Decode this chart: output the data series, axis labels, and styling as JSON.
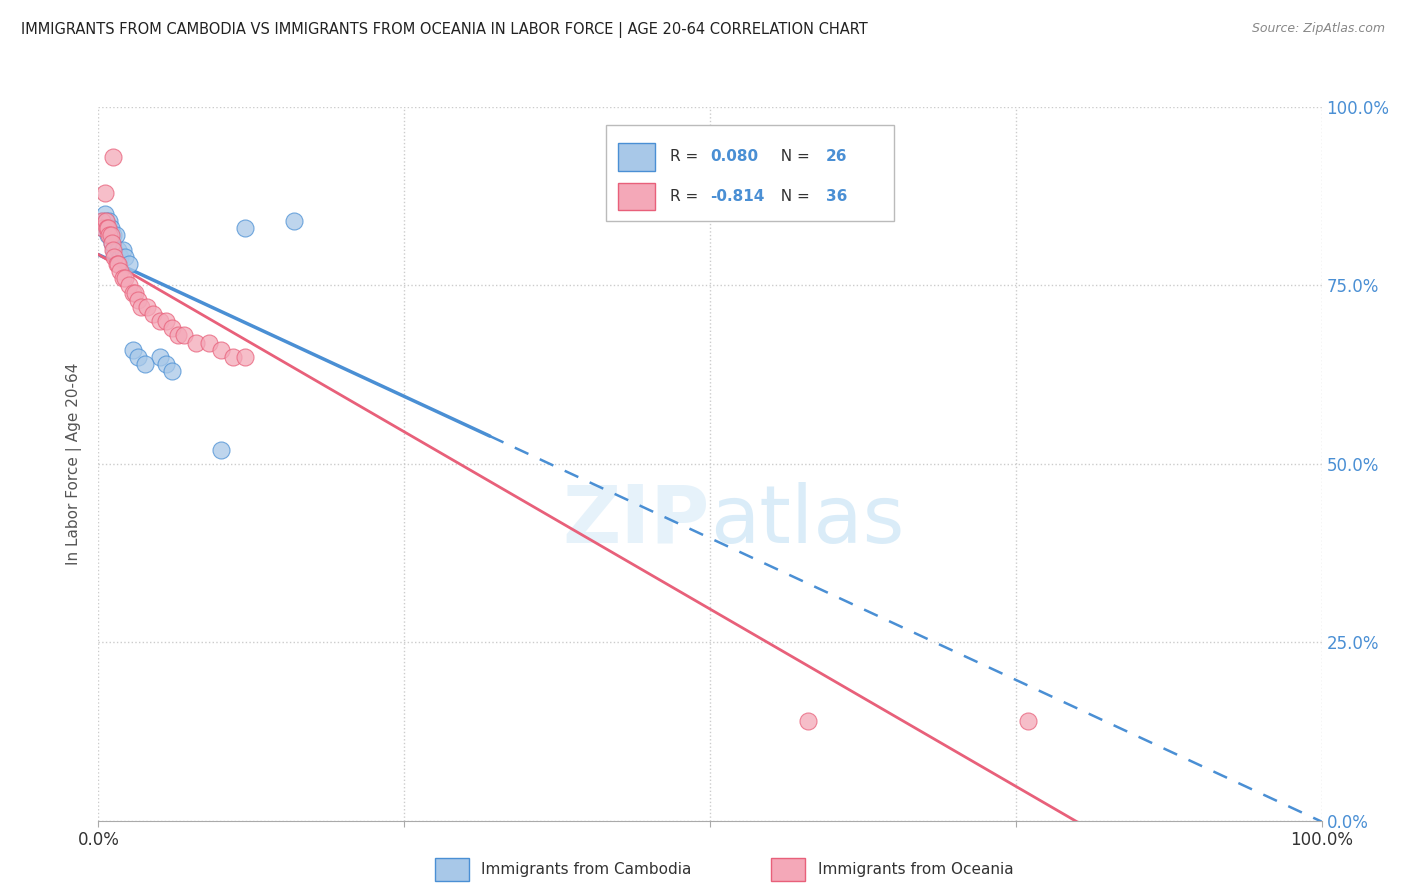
{
  "title": "IMMIGRANTS FROM CAMBODIA VS IMMIGRANTS FROM OCEANIA IN LABOR FORCE | AGE 20-64 CORRELATION CHART",
  "source": "Source: ZipAtlas.com",
  "ylabel": "In Labor Force | Age 20-64",
  "r_cambodia": "0.080",
  "n_cambodia": "26",
  "r_oceania": "-0.814",
  "n_oceania": "36",
  "cambodia_color": "#a8c8e8",
  "oceania_color": "#f4a8b8",
  "trend_cambodia_color": "#4a8fd4",
  "trend_oceania_color": "#e8607a",
  "watermark_zip": "ZIP",
  "watermark_atlas": "atlas",
  "cambodia_points_x": [
    0.003,
    0.004,
    0.005,
    0.006,
    0.007,
    0.008,
    0.009,
    0.01,
    0.011,
    0.012,
    0.013,
    0.014,
    0.016,
    0.018,
    0.02,
    0.022,
    0.025,
    0.05,
    0.055,
    0.06,
    0.12,
    0.16,
    0.028,
    0.032,
    0.038,
    0.1
  ],
  "cambodia_points_y": [
    0.84,
    0.83,
    0.85,
    0.84,
    0.83,
    0.82,
    0.84,
    0.83,
    0.81,
    0.82,
    0.8,
    0.82,
    0.8,
    0.79,
    0.8,
    0.79,
    0.78,
    0.65,
    0.64,
    0.63,
    0.83,
    0.84,
    0.66,
    0.65,
    0.64,
    0.52
  ],
  "oceania_points_x": [
    0.003,
    0.004,
    0.005,
    0.006,
    0.007,
    0.008,
    0.009,
    0.01,
    0.011,
    0.012,
    0.013,
    0.015,
    0.016,
    0.018,
    0.02,
    0.022,
    0.025,
    0.028,
    0.03,
    0.032,
    0.035,
    0.04,
    0.045,
    0.05,
    0.055,
    0.06,
    0.065,
    0.07,
    0.08,
    0.09,
    0.1,
    0.11,
    0.12,
    0.58,
    0.76,
    0.012
  ],
  "oceania_points_y": [
    0.84,
    0.83,
    0.88,
    0.84,
    0.83,
    0.83,
    0.82,
    0.82,
    0.81,
    0.8,
    0.79,
    0.78,
    0.78,
    0.77,
    0.76,
    0.76,
    0.75,
    0.74,
    0.74,
    0.73,
    0.72,
    0.72,
    0.71,
    0.7,
    0.7,
    0.69,
    0.68,
    0.68,
    0.67,
    0.67,
    0.66,
    0.65,
    0.65,
    0.14,
    0.14,
    0.93
  ]
}
